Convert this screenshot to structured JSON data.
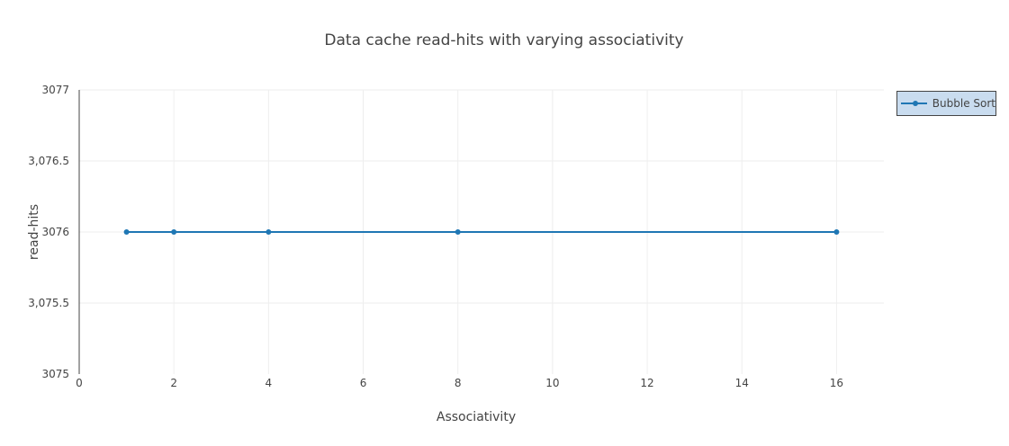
{
  "chart_data": {
    "type": "line",
    "title": "Data cache read-hits with varying associativity",
    "xlabel": "Associativity",
    "ylabel": "read-hits",
    "xlim": [
      0,
      17
    ],
    "ylim": [
      3075,
      3077
    ],
    "xticks": [
      0,
      2,
      4,
      6,
      8,
      10,
      12,
      14,
      16
    ],
    "xtick_labels": [
      "0",
      "2",
      "4",
      "6",
      "8",
      "10",
      "12",
      "14",
      "16"
    ],
    "yticks": [
      3075,
      3075.5,
      3076,
      3076.5,
      3077
    ],
    "ytick_labels": [
      "3075",
      "3,075.5",
      "3076",
      "3,076.5",
      "3077"
    ],
    "grid": true,
    "legend_position": "top-right",
    "series": [
      {
        "name": "Bubble Sort",
        "color": "#1f77b4",
        "x": [
          1,
          2,
          4,
          8,
          16
        ],
        "y": [
          3076,
          3076,
          3076,
          3076,
          3076
        ]
      }
    ]
  }
}
